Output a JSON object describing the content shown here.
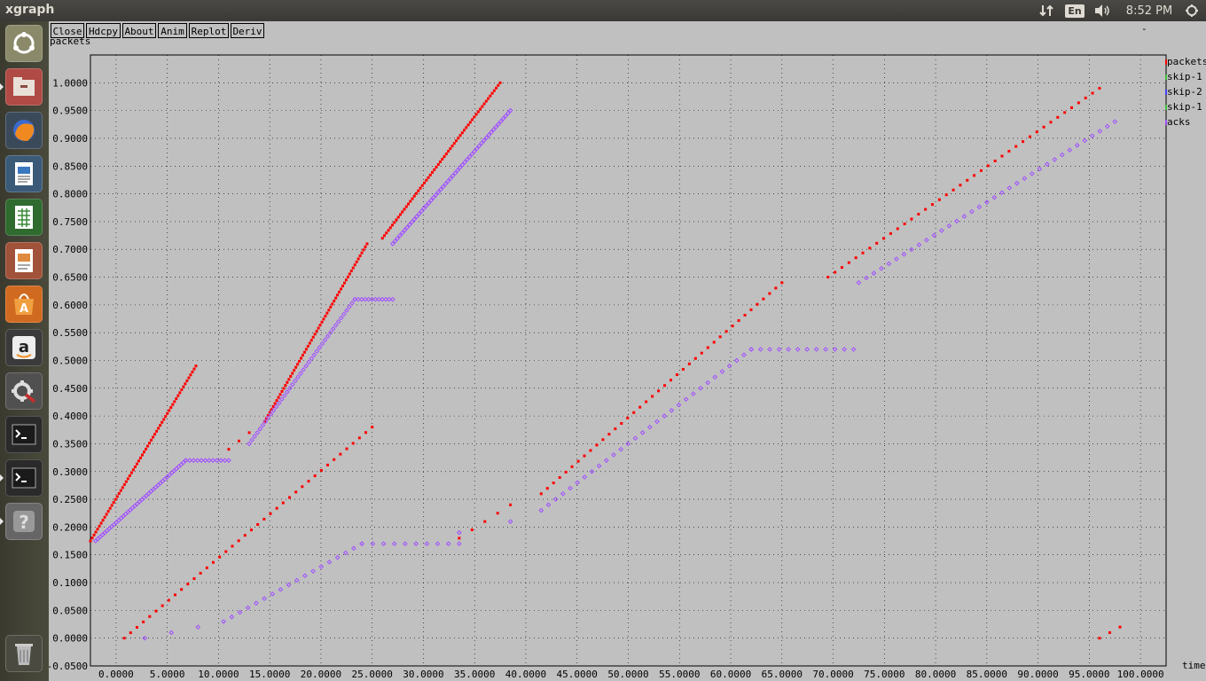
{
  "topbar": {
    "app_title": "xgraph",
    "language": "En",
    "clock": "8:52 PM",
    "icons": [
      "network-icon",
      "keyboard-layout-icon",
      "volume-icon",
      "session-gear-icon"
    ]
  },
  "launcher": {
    "items": [
      {
        "name": "ubuntu-dash-icon",
        "color": "#8a8a6a"
      },
      {
        "name": "file-manager-icon",
        "color": "#b04a44"
      },
      {
        "name": "firefox-icon",
        "color": "#3a4a5a"
      },
      {
        "name": "libreoffice-writer-icon",
        "color": "#3a5a78"
      },
      {
        "name": "libreoffice-calc-icon",
        "color": "#2f6a2f"
      },
      {
        "name": "libreoffice-impress-icon",
        "color": "#a0523a"
      },
      {
        "name": "software-center-icon",
        "color": "#d06a20"
      },
      {
        "name": "amazon-icon",
        "color": "#3a3a3a"
      },
      {
        "name": "system-settings-icon",
        "color": "#505050"
      },
      {
        "name": "terminal-icon",
        "color": "#2a2a2a"
      },
      {
        "name": "terminal-icon-2",
        "color": "#2a2a2a"
      },
      {
        "name": "help-icon",
        "color": "#666666"
      },
      {
        "name": "trash-icon",
        "color": "#4a4a40"
      }
    ]
  },
  "toolbar": {
    "buttons": [
      "Close",
      "Hdcpy",
      "About",
      "Anim",
      "Replot",
      "Deriv"
    ],
    "dash": "-"
  },
  "colors": {
    "packets": "#ff0000",
    "acks": "#a050ff",
    "background": "#c0c0c0"
  },
  "chart_data": {
    "type": "scatter",
    "ylabel": "packets",
    "xlabel": "time",
    "xlim": [
      -2.5,
      102.5
    ],
    "ylim": [
      -0.05,
      1.05
    ],
    "x_ticks": [
      "0.0000",
      "5.0000",
      "10.0000",
      "15.0000",
      "20.0000",
      "25.0000",
      "30.0000",
      "35.0000",
      "40.0000",
      "45.0000",
      "50.0000",
      "55.0000",
      "60.0000",
      "65.0000",
      "70.0000",
      "75.0000",
      "80.0000",
      "85.0000",
      "90.0000",
      "95.0000",
      "100.0000"
    ],
    "y_ticks": [
      "-0.0500",
      "0.0000",
      "0.0500",
      "0.1000",
      "0.1500",
      "0.2000",
      "0.2500",
      "0.3000",
      "0.3500",
      "0.4000",
      "0.4500",
      "0.5000",
      "0.5500",
      "0.6000",
      "0.6500",
      "0.7000",
      "0.7500",
      "0.8000",
      "0.8500",
      "0.9000",
      "0.9500",
      "1.0000"
    ],
    "legend": [
      "packets",
      "skip-1",
      "skip-2",
      "skip-1",
      "acks"
    ],
    "series": [
      {
        "name": "packets",
        "segments": [
          {
            "x0": -2.5,
            "x1": 7.8,
            "y0": 0.175,
            "y1": 0.49,
            "n": 60
          },
          {
            "x0": 11.0,
            "x1": 13.0,
            "y0": 0.34,
            "y1": 0.37,
            "n": 3
          },
          {
            "x0": 14.5,
            "x1": 24.5,
            "y0": 0.39,
            "y1": 0.71,
            "n": 60
          },
          {
            "x0": 26.0,
            "x1": 37.5,
            "y0": 0.72,
            "y1": 1.0,
            "n": 60
          },
          {
            "x0": 0.8,
            "x1": 25.0,
            "y0": 0.0,
            "y1": 0.38,
            "n": 40
          },
          {
            "x0": 33.5,
            "x1": 38.5,
            "y0": 0.18,
            "y1": 0.24,
            "n": 5
          },
          {
            "x0": 41.5,
            "x1": 65.0,
            "y0": 0.26,
            "y1": 0.64,
            "n": 40
          },
          {
            "x0": 69.5,
            "x1": 96.0,
            "y0": 0.65,
            "y1": 0.99,
            "n": 40
          },
          {
            "x0": 96.0,
            "x1": 98.0,
            "y0": 0.0,
            "y1": 0.02,
            "n": 3
          }
        ]
      },
      {
        "name": "acks",
        "segments": [
          {
            "x0": -2.0,
            "x1": 6.8,
            "y0": 0.175,
            "y1": 0.32,
            "n": 40
          },
          {
            "x0": 6.8,
            "x1": 11.0,
            "y0": 0.32,
            "y1": 0.32,
            "n": 12
          },
          {
            "x0": 13.0,
            "x1": 23.3,
            "y0": 0.35,
            "y1": 0.61,
            "n": 40
          },
          {
            "x0": 23.3,
            "x1": 27.0,
            "y0": 0.61,
            "y1": 0.61,
            "n": 12
          },
          {
            "x0": 27.0,
            "x1": 38.5,
            "y0": 0.71,
            "y1": 0.95,
            "n": 50
          },
          {
            "x0": 2.8,
            "x1": 8.0,
            "y0": 0.0,
            "y1": 0.02,
            "n": 3
          },
          {
            "x0": 10.5,
            "x1": 24.0,
            "y0": 0.03,
            "y1": 0.17,
            "n": 18
          },
          {
            "x0": 24.0,
            "x1": 33.5,
            "y0": 0.17,
            "y1": 0.17,
            "n": 10
          },
          {
            "x0": 33.5,
            "x1": 38.5,
            "y0": 0.19,
            "y1": 0.21,
            "n": 2
          },
          {
            "x0": 41.5,
            "x1": 62.0,
            "y0": 0.23,
            "y1": 0.52,
            "n": 30
          },
          {
            "x0": 62.0,
            "x1": 72.0,
            "y0": 0.52,
            "y1": 0.52,
            "n": 12
          },
          {
            "x0": 72.5,
            "x1": 97.5,
            "y0": 0.64,
            "y1": 0.93,
            "n": 35
          }
        ]
      }
    ]
  }
}
